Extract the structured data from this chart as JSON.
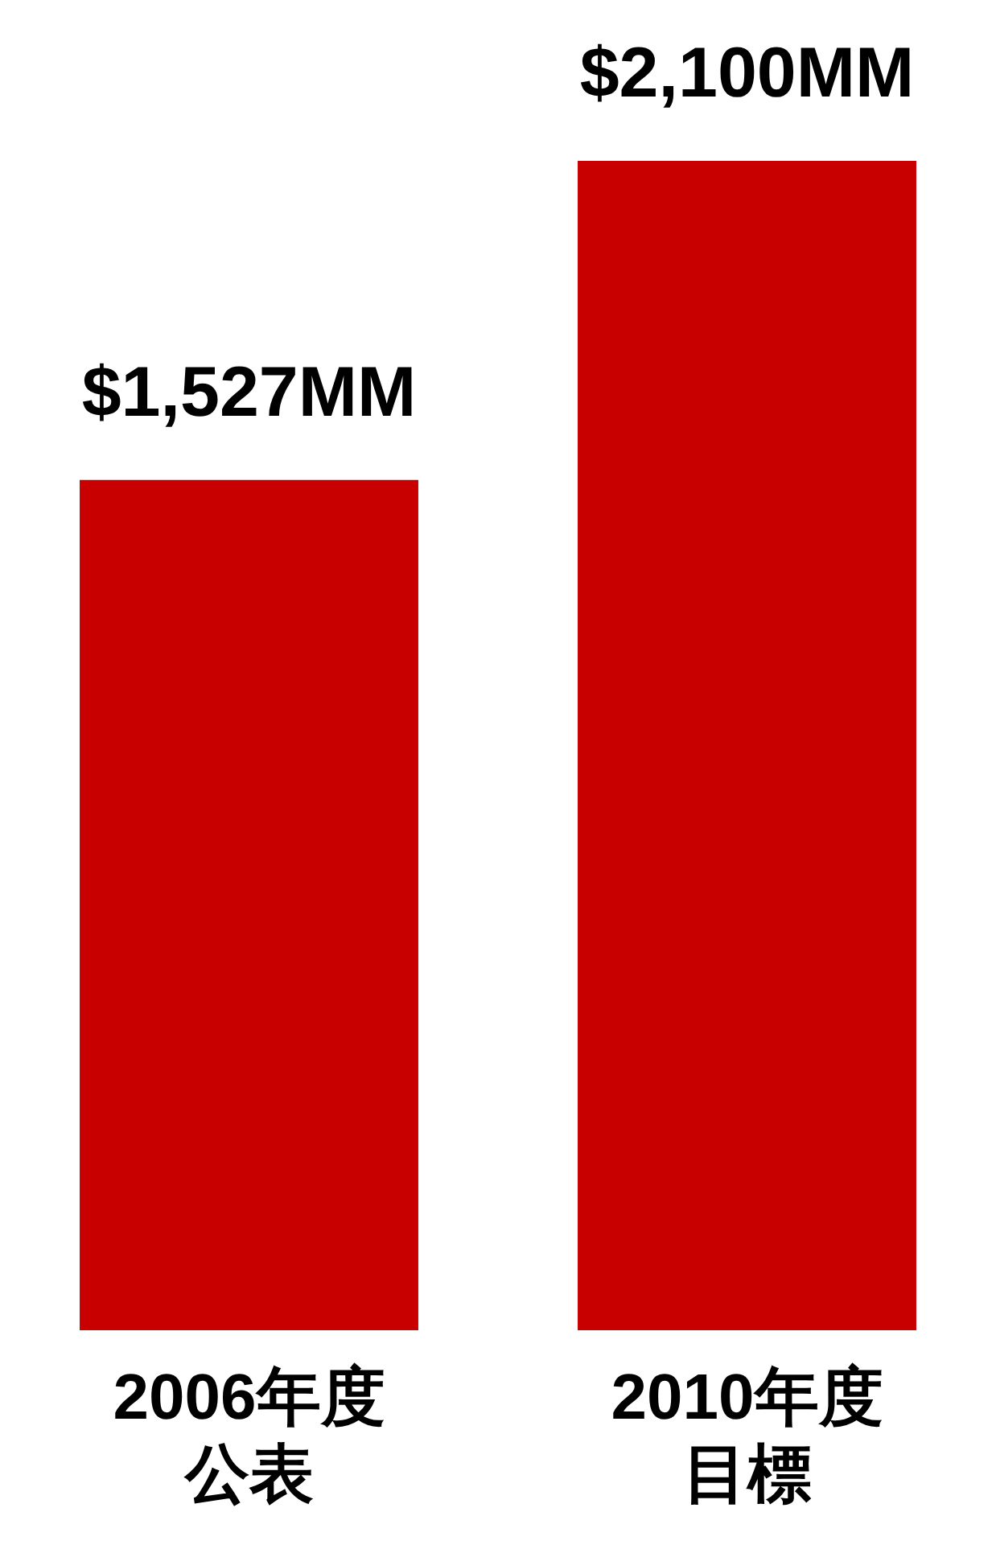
{
  "chart_data": {
    "type": "bar",
    "categories": [
      "2006年度公表",
      "2010年度目標"
    ],
    "values": [
      1527,
      2100
    ],
    "color": "#c80000",
    "value_labels": [
      "$1,527MM",
      "$2,100MM"
    ],
    "grid": false,
    "legend": false
  }
}
